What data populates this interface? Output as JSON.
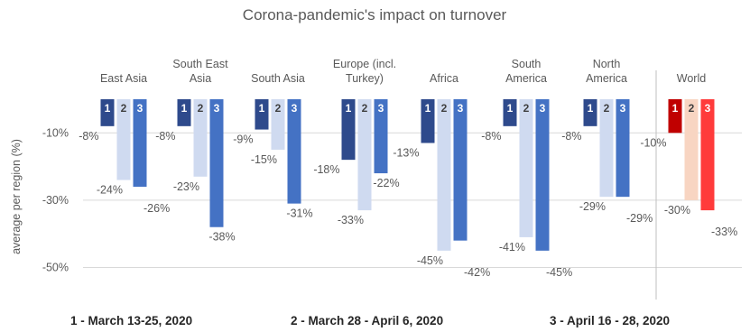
{
  "chart_data": {
    "type": "bar",
    "title": "Corona-pandemic's impact on turnover",
    "ylabel": "average per region (%)",
    "ylim": [
      -52,
      0
    ],
    "yticks": [
      -10,
      -30,
      -50
    ],
    "ytick_labels": [
      "-10%",
      "-30%",
      "-50%"
    ],
    "grid": true,
    "categories": [
      [
        "East Asia"
      ],
      [
        "South East",
        "Asia"
      ],
      [
        "South Asia"
      ],
      [
        "Europe (incl.",
        "Turkey)"
      ],
      [
        "Africa"
      ],
      [
        "South",
        "America"
      ],
      [
        "North",
        "America"
      ],
      [
        "World"
      ]
    ],
    "series": [
      {
        "index_label": "1",
        "values": [
          -8,
          -8,
          -9,
          -18,
          -13,
          -8,
          -8,
          -10
        ]
      },
      {
        "index_label": "2",
        "values": [
          -24,
          -23,
          -15,
          -33,
          -45,
          -41,
          -29,
          -30
        ]
      },
      {
        "index_label": "3",
        "values": [
          -26,
          -38,
          -31,
          -22,
          -42,
          -45,
          -29,
          -33
        ]
      }
    ],
    "data_labels": [
      [
        "-8%",
        "-24%",
        "-26%"
      ],
      [
        "-8%",
        "-23%",
        "-38%"
      ],
      [
        "-9%",
        "-15%",
        "-31%"
      ],
      [
        "-18%",
        "-33%",
        "-22%"
      ],
      [
        "-13%",
        "-45%",
        "-42%"
      ],
      [
        "-8%",
        "-41%",
        "-45%"
      ],
      [
        "-8%",
        "-29%",
        "-29%"
      ],
      [
        "-10%",
        "-30%",
        "-33%"
      ]
    ],
    "colors": {
      "regional": [
        "#2e4a8c",
        "#cfdaf0",
        "#4472c4"
      ],
      "world": [
        "#c00000",
        "#f8d5c2",
        "#ff3b3b"
      ],
      "grid": "#d9d9d9",
      "axis": "#bfbfbf"
    },
    "legend": [
      "1 - March 13-25, 2020",
      "2 - March 28 - April 6, 2020",
      "3 - April 16 - 28, 2020"
    ]
  }
}
